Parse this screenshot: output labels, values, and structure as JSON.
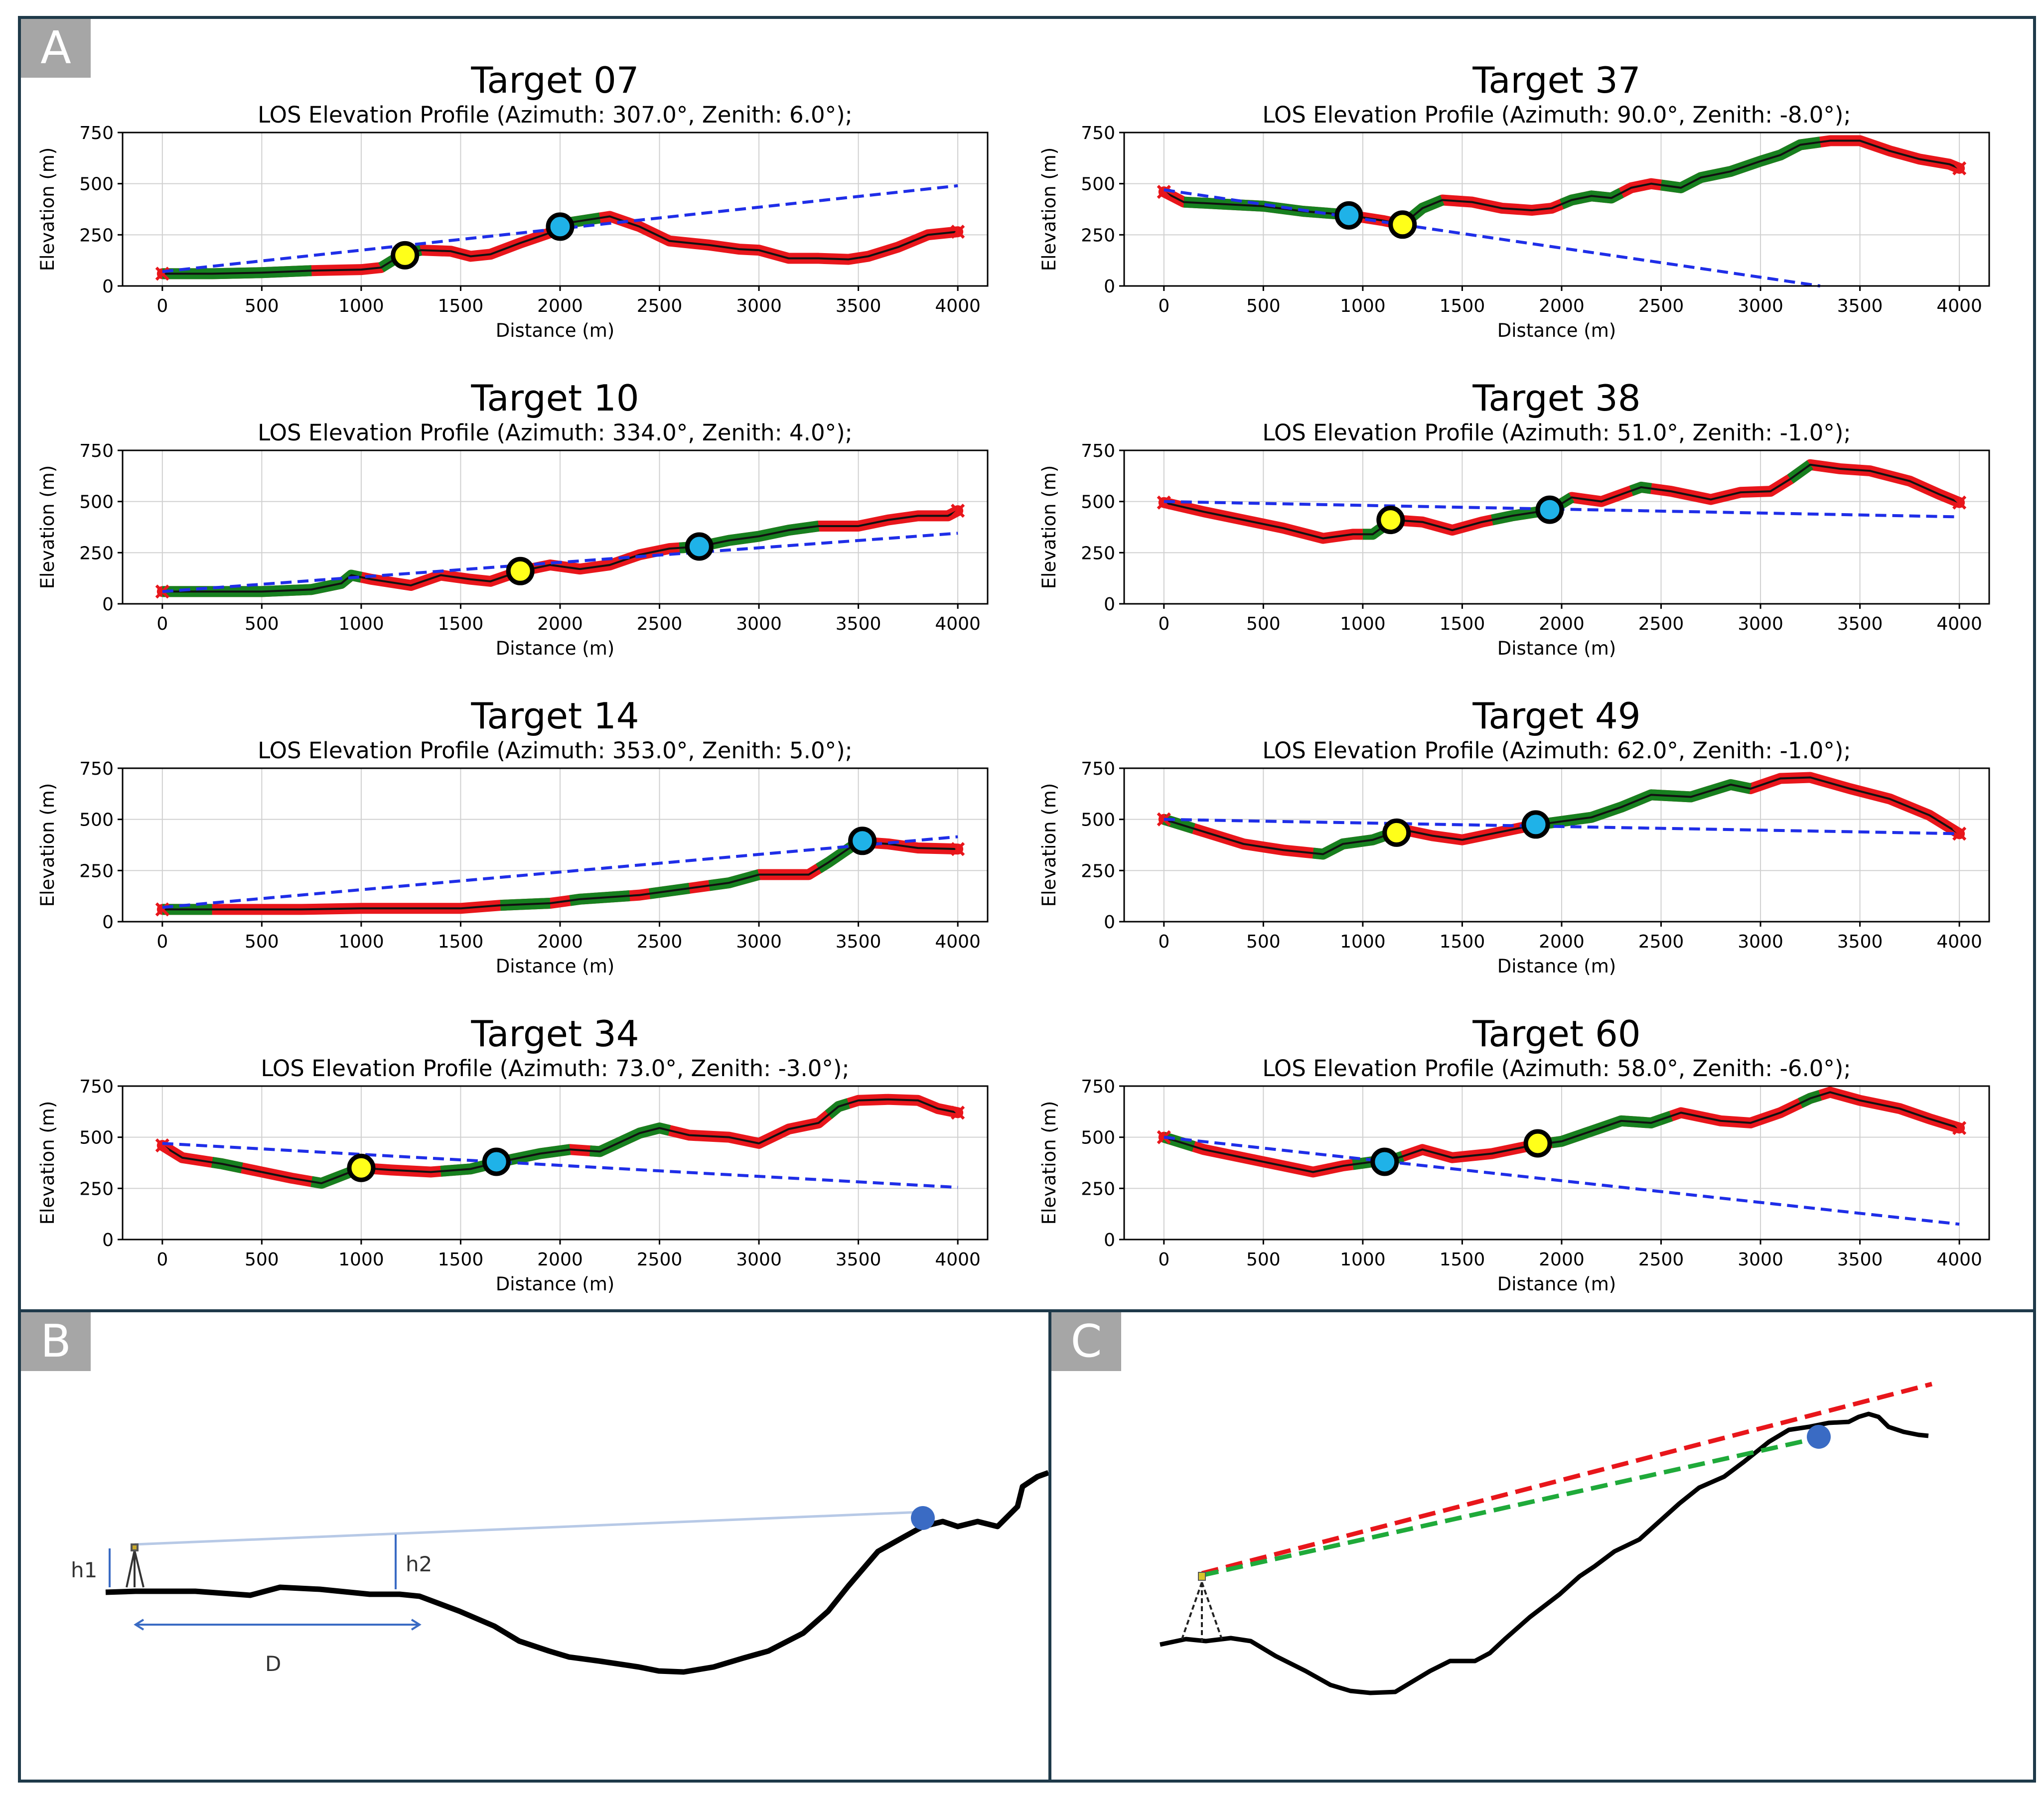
{
  "panels": {
    "a": {
      "label": "A"
    },
    "b": {
      "label": "B",
      "h1": "h1",
      "h2": "h2",
      "d": "D"
    },
    "c": {
      "label": "C"
    }
  },
  "colors": {
    "frame": "#1f3a4a",
    "terrain_red": "#e8161b",
    "terrain_green": "#17801f",
    "los": "#1f2ee8",
    "yellow_marker": "#ffff19",
    "blue_marker": "#1fb2e8",
    "panel_c_red": "#e8161b",
    "panel_c_green": "#1faa3a",
    "panel_b_target": "#3a6bc4"
  },
  "chart_data": [
    {
      "type": "line",
      "title": "Target 07",
      "subtitle": "LOS Elevation Profile (Azimuth: 307.0°, Zenith: 6.0°);",
      "xlabel": "Distance (m)",
      "ylabel": "Elevation (m)",
      "xlim": [
        -200,
        4150
      ],
      "ylim": [
        0,
        750
      ],
      "xticks": [
        "0",
        "500",
        "1000",
        "1500",
        "2000",
        "2500",
        "3000",
        "3500",
        "4000"
      ],
      "yticks": [
        "0",
        "250",
        "500",
        "750"
      ],
      "los": [
        [
          0,
          70
        ],
        [
          4000,
          490
        ]
      ],
      "terrain": [
        [
          0,
          60
        ],
        [
          250,
          60
        ],
        [
          500,
          65
        ],
        [
          750,
          75
        ],
        [
          1000,
          80
        ],
        [
          1100,
          90
        ],
        [
          1200,
          150
        ],
        [
          1300,
          175
        ],
        [
          1450,
          170
        ],
        [
          1550,
          145
        ],
        [
          1650,
          155
        ],
        [
          1800,
          210
        ],
        [
          1950,
          260
        ],
        [
          2050,
          310
        ],
        [
          2250,
          340
        ],
        [
          2400,
          290
        ],
        [
          2550,
          220
        ],
        [
          2750,
          200
        ],
        [
          2900,
          180
        ],
        [
          3000,
          175
        ],
        [
          3150,
          135
        ],
        [
          3300,
          135
        ],
        [
          3450,
          130
        ],
        [
          3550,
          145
        ],
        [
          3700,
          190
        ],
        [
          3850,
          250
        ],
        [
          4000,
          265
        ]
      ],
      "green_segments": [
        [
          0,
          750
        ],
        [
          1100,
          1300
        ],
        [
          2000,
          2200
        ]
      ],
      "yellow": [
        1220,
        150
      ],
      "blue": [
        2000,
        290
      ]
    },
    {
      "type": "line",
      "title": "Target 37",
      "subtitle": "LOS Elevation Profile (Azimuth: 90.0°, Zenith: -8.0°);",
      "xlabel": "Distance (m)",
      "ylabel": "Elevation (m)",
      "xlim": [
        -200,
        4150
      ],
      "ylim": [
        0,
        750
      ],
      "xticks": [
        "0",
        "500",
        "1000",
        "1500",
        "2000",
        "2500",
        "3000",
        "3500",
        "4000"
      ],
      "yticks": [
        "0",
        "250",
        "500",
        "750"
      ],
      "los": [
        [
          0,
          470
        ],
        [
          3300,
          0
        ]
      ],
      "terrain": [
        [
          0,
          460
        ],
        [
          100,
          410
        ],
        [
          300,
          400
        ],
        [
          500,
          390
        ],
        [
          700,
          365
        ],
        [
          900,
          350
        ],
        [
          1100,
          320
        ],
        [
          1200,
          300
        ],
        [
          1300,
          380
        ],
        [
          1400,
          420
        ],
        [
          1550,
          410
        ],
        [
          1700,
          380
        ],
        [
          1850,
          370
        ],
        [
          1950,
          380
        ],
        [
          2050,
          420
        ],
        [
          2150,
          440
        ],
        [
          2250,
          430
        ],
        [
          2350,
          480
        ],
        [
          2450,
          500
        ],
        [
          2600,
          480
        ],
        [
          2700,
          530
        ],
        [
          2850,
          560
        ],
        [
          3000,
          610
        ],
        [
          3100,
          640
        ],
        [
          3200,
          690
        ],
        [
          3350,
          710
        ],
        [
          3500,
          710
        ],
        [
          3650,
          660
        ],
        [
          3800,
          620
        ],
        [
          3950,
          595
        ],
        [
          4000,
          575
        ]
      ],
      "green_segments": [
        [
          100,
          900
        ],
        [
          1200,
          1400
        ],
        [
          2000,
          2300
        ],
        [
          2500,
          3300
        ]
      ],
      "yellow": [
        1200,
        300
      ],
      "blue": [
        930,
        345
      ]
    },
    {
      "type": "line",
      "title": "Target 10",
      "subtitle": "LOS Elevation Profile (Azimuth: 334.0°, Zenith: 4.0°);",
      "xlabel": "Distance (m)",
      "ylabel": "Elevation (m)",
      "xlim": [
        -200,
        4150
      ],
      "ylim": [
        0,
        750
      ],
      "xticks": [
        "0",
        "500",
        "1000",
        "1500",
        "2000",
        "2500",
        "3000",
        "3500",
        "4000"
      ],
      "yticks": [
        "0",
        "250",
        "500",
        "750"
      ],
      "los": [
        [
          0,
          60
        ],
        [
          4000,
          345
        ]
      ],
      "terrain": [
        [
          0,
          60
        ],
        [
          500,
          60
        ],
        [
          750,
          70
        ],
        [
          900,
          100
        ],
        [
          950,
          140
        ],
        [
          1050,
          120
        ],
        [
          1250,
          90
        ],
        [
          1400,
          140
        ],
        [
          1550,
          120
        ],
        [
          1650,
          110
        ],
        [
          1800,
          160
        ],
        [
          1950,
          190
        ],
        [
          2100,
          170
        ],
        [
          2250,
          190
        ],
        [
          2400,
          240
        ],
        [
          2550,
          270
        ],
        [
          2700,
          280
        ],
        [
          2850,
          310
        ],
        [
          3000,
          330
        ],
        [
          3150,
          360
        ],
        [
          3300,
          380
        ],
        [
          3500,
          380
        ],
        [
          3650,
          410
        ],
        [
          3800,
          430
        ],
        [
          3950,
          430
        ],
        [
          4000,
          455
        ]
      ],
      "green_segments": [
        [
          0,
          1000
        ],
        [
          2600,
          3300
        ]
      ],
      "yellow": [
        1800,
        160
      ],
      "blue": [
        2700,
        280
      ]
    },
    {
      "type": "line",
      "title": "Target 38",
      "subtitle": "LOS Elevation Profile (Azimuth: 51.0°, Zenith: -1.0°);",
      "xlabel": "Distance (m)",
      "ylabel": "Elevation (m)",
      "xlim": [
        -200,
        4150
      ],
      "ylim": [
        0,
        750
      ],
      "xticks": [
        "0",
        "500",
        "1000",
        "1500",
        "2000",
        "2500",
        "3000",
        "3500",
        "4000"
      ],
      "yticks": [
        "0",
        "250",
        "500",
        "750"
      ],
      "los": [
        [
          0,
          500
        ],
        [
          4000,
          425
        ]
      ],
      "terrain": [
        [
          0,
          495
        ],
        [
          200,
          450
        ],
        [
          400,
          410
        ],
        [
          600,
          370
        ],
        [
          800,
          320
        ],
        [
          950,
          340
        ],
        [
          1050,
          340
        ],
        [
          1150,
          410
        ],
        [
          1300,
          400
        ],
        [
          1450,
          360
        ],
        [
          1600,
          400
        ],
        [
          1750,
          430
        ],
        [
          1950,
          460
        ],
        [
          2050,
          520
        ],
        [
          2200,
          500
        ],
        [
          2400,
          570
        ],
        [
          2550,
          550
        ],
        [
          2750,
          510
        ],
        [
          2900,
          545
        ],
        [
          3050,
          550
        ],
        [
          3150,
          610
        ],
        [
          3250,
          680
        ],
        [
          3400,
          660
        ],
        [
          3550,
          650
        ],
        [
          3750,
          600
        ],
        [
          3900,
          535
        ],
        [
          4000,
          495
        ]
      ],
      "green_segments": [
        [
          1000,
          1150
        ],
        [
          1650,
          2050
        ],
        [
          2350,
          2450
        ],
        [
          3150,
          3250
        ]
      ],
      "yellow": [
        1140,
        410
      ],
      "blue": [
        1940,
        460
      ]
    },
    {
      "type": "line",
      "title": "Target 14",
      "subtitle": "LOS Elevation Profile (Azimuth: 353.0°, Zenith: 5.0°);",
      "xlabel": "Distance (m)",
      "ylabel": "Elevation (m)",
      "xlim": [
        -200,
        4150
      ],
      "ylim": [
        0,
        750
      ],
      "xticks": [
        "0",
        "500",
        "1000",
        "1500",
        "2000",
        "2500",
        "3000",
        "3500",
        "4000"
      ],
      "yticks": [
        "0",
        "250",
        "500",
        "750"
      ],
      "los": [
        [
          0,
          70
        ],
        [
          4000,
          415
        ]
      ],
      "terrain": [
        [
          0,
          60
        ],
        [
          300,
          60
        ],
        [
          700,
          60
        ],
        [
          1000,
          65
        ],
        [
          1500,
          65
        ],
        [
          1700,
          80
        ],
        [
          1950,
          90
        ],
        [
          2100,
          110
        ],
        [
          2400,
          130
        ],
        [
          2700,
          170
        ],
        [
          2850,
          190
        ],
        [
          3000,
          230
        ],
        [
          3250,
          230
        ],
        [
          3350,
          290
        ],
        [
          3500,
          390
        ],
        [
          3650,
          380
        ],
        [
          3800,
          360
        ],
        [
          4000,
          355
        ]
      ],
      "green_segments": [
        [
          0,
          250
        ],
        [
          1700,
          1950
        ],
        [
          2050,
          2350
        ],
        [
          2450,
          2650
        ],
        [
          2750,
          3000
        ],
        [
          3300,
          3500
        ]
      ],
      "yellow": null,
      "blue": [
        3520,
        395
      ]
    },
    {
      "type": "line",
      "title": "Target 49",
      "subtitle": "LOS Elevation Profile (Azimuth: 62.0°, Zenith: -1.0°);",
      "xlabel": "Distance (m)",
      "ylabel": "Elevation (m)",
      "xlim": [
        -200,
        4150
      ],
      "ylim": [
        0,
        750
      ],
      "xticks": [
        "0",
        "500",
        "1000",
        "1500",
        "2000",
        "2500",
        "3000",
        "3500",
        "4000"
      ],
      "yticks": [
        "0",
        "250",
        "500",
        "750"
      ],
      "los": [
        [
          0,
          500
        ],
        [
          4000,
          430
        ]
      ],
      "terrain": [
        [
          0,
          500
        ],
        [
          200,
          440
        ],
        [
          400,
          380
        ],
        [
          600,
          350
        ],
        [
          700,
          340
        ],
        [
          800,
          330
        ],
        [
          900,
          380
        ],
        [
          1050,
          400
        ],
        [
          1200,
          450
        ],
        [
          1350,
          420
        ],
        [
          1500,
          400
        ],
        [
          1650,
          430
        ],
        [
          1850,
          470
        ],
        [
          2000,
          490
        ],
        [
          2150,
          510
        ],
        [
          2300,
          560
        ],
        [
          2450,
          620
        ],
        [
          2650,
          610
        ],
        [
          2850,
          670
        ],
        [
          2950,
          650
        ],
        [
          3100,
          700
        ],
        [
          3250,
          705
        ],
        [
          3450,
          650
        ],
        [
          3650,
          600
        ],
        [
          3850,
          520
        ],
        [
          4000,
          430
        ]
      ],
      "green_segments": [
        [
          0,
          150
        ],
        [
          750,
          1150
        ],
        [
          1850,
          2950
        ]
      ],
      "yellow": [
        1170,
        435
      ],
      "blue": [
        1870,
        475
      ]
    },
    {
      "type": "line",
      "title": "Target 34",
      "subtitle": "LOS Elevation Profile (Azimuth: 73.0°, Zenith: -3.0°);",
      "xlabel": "Distance (m)",
      "ylabel": "Elevation (m)",
      "xlim": [
        -200,
        4150
      ],
      "ylim": [
        0,
        750
      ],
      "xticks": [
        "0",
        "500",
        "1000",
        "1500",
        "2000",
        "2500",
        "3000",
        "3500",
        "4000"
      ],
      "yticks": [
        "0",
        "250",
        "500",
        "750"
      ],
      "los": [
        [
          0,
          470
        ],
        [
          4000,
          255
        ]
      ],
      "terrain": [
        [
          0,
          460
        ],
        [
          100,
          400
        ],
        [
          300,
          370
        ],
        [
          500,
          330
        ],
        [
          650,
          300
        ],
        [
          800,
          275
        ],
        [
          1000,
          350
        ],
        [
          1150,
          340
        ],
        [
          1350,
          330
        ],
        [
          1550,
          345
        ],
        [
          1700,
          380
        ],
        [
          1900,
          420
        ],
        [
          2050,
          440
        ],
        [
          2200,
          430
        ],
        [
          2400,
          520
        ],
        [
          2500,
          545
        ],
        [
          2650,
          510
        ],
        [
          2850,
          500
        ],
        [
          3000,
          470
        ],
        [
          3150,
          540
        ],
        [
          3300,
          570
        ],
        [
          3400,
          650
        ],
        [
          3500,
          680
        ],
        [
          3650,
          685
        ],
        [
          3800,
          680
        ],
        [
          3900,
          640
        ],
        [
          4000,
          620
        ]
      ],
      "green_segments": [
        [
          250,
          400
        ],
        [
          750,
          1000
        ],
        [
          1400,
          2050
        ],
        [
          2150,
          2550
        ],
        [
          3350,
          3450
        ]
      ],
      "yellow": [
        1000,
        350
      ],
      "blue": [
        1680,
        380
      ]
    },
    {
      "type": "line",
      "title": "Target 60",
      "subtitle": "LOS Elevation Profile (Azimuth: 58.0°, Zenith: -6.0°);",
      "xlabel": "Distance (m)",
      "ylabel": "Elevation (m)",
      "xlim": [
        -200,
        4150
      ],
      "ylim": [
        0,
        750
      ],
      "xticks": [
        "0",
        "500",
        "1000",
        "1500",
        "2000",
        "2500",
        "3000",
        "3500",
        "4000"
      ],
      "yticks": [
        "0",
        "250",
        "500",
        "750"
      ],
      "los": [
        [
          0,
          500
        ],
        [
          4000,
          75
        ]
      ],
      "terrain": [
        [
          0,
          500
        ],
        [
          200,
          440
        ],
        [
          400,
          400
        ],
        [
          600,
          360
        ],
        [
          750,
          330
        ],
        [
          900,
          360
        ],
        [
          1050,
          380
        ],
        [
          1150,
          390
        ],
        [
          1300,
          440
        ],
        [
          1450,
          400
        ],
        [
          1650,
          420
        ],
        [
          1850,
          460
        ],
        [
          2000,
          480
        ],
        [
          2150,
          530
        ],
        [
          2300,
          580
        ],
        [
          2450,
          570
        ],
        [
          2600,
          620
        ],
        [
          2800,
          580
        ],
        [
          2950,
          570
        ],
        [
          3100,
          620
        ],
        [
          3250,
          690
        ],
        [
          3350,
          720
        ],
        [
          3500,
          680
        ],
        [
          3700,
          640
        ],
        [
          3850,
          590
        ],
        [
          4000,
          545
        ]
      ],
      "green_segments": [
        [
          0,
          150
        ],
        [
          950,
          1200
        ],
        [
          1950,
          2550
        ],
        [
          3200,
          3300
        ]
      ],
      "yellow": [
        1880,
        470
      ],
      "blue": [
        1110,
        380
      ]
    }
  ]
}
